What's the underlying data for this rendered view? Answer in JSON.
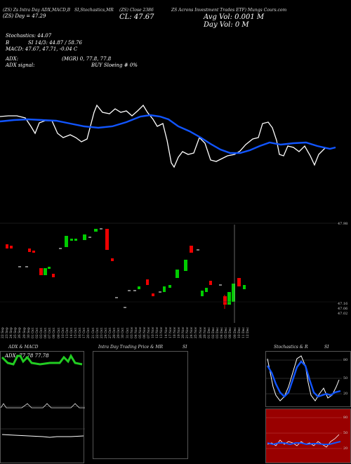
{
  "header": {
    "left1": "(ZS) Zs Intra Day ADX,MACD,B",
    "left2": "(ZS) Day = 47.29",
    "center1": "SI,Stochastics,MR",
    "center2": "(ZS) Close 2386",
    "close": "CL: 47.67",
    "right1": "ZS Acrons Investment Trades ETF) Mungs Cours.com",
    "avg_vol": "Avg Vol: 0.001 M",
    "day_vol": "Day Vol: 0   M"
  },
  "indicators": {
    "stochastics": "Stochastics: 44.07",
    "si": "SI 14/3: 44.87 / 58.76",
    "si_label": "B",
    "macd": "MACD: 47.67, 47.71, -0.04  C",
    "adx": "ADX:",
    "adx_vals": "(MGR) 0, 77.8, 77.8",
    "adx_signal": "ADX  signal:",
    "buy": "BUY Sloeing # 0%"
  },
  "price_labels": {
    "top": "47.98",
    "low1": "47.16",
    "low2": "47.06",
    "low3": "47.02"
  },
  "dates": [
    "22 Sep",
    "23 Sep",
    "24 Sep",
    "25 Sep",
    "26 Sep",
    "29 Sep",
    "30 Sep",
    "01 Oct",
    "02 Oct",
    "03 Oct",
    "06 Oct",
    "07 Oct",
    "08 Oct",
    "09 Oct",
    "10 Oct",
    "13 Oct",
    "14 Oct",
    "15 Oct",
    "16 Oct",
    "17 Oct",
    "20 Oct",
    "21 Oct",
    "22 Oct",
    "23 Oct",
    "24 Oct",
    "27 Oct",
    "28 Oct",
    "29 Oct",
    "30 Oct",
    "31 Oct",
    "03 Nov",
    "04 Nov",
    "05 Nov",
    "06 Nov",
    "07 Nov",
    "10 Nov",
    "12 Nov",
    "13 Nov",
    "14 Nov",
    "17 Nov",
    "18 Nov",
    "19 Nov",
    "20 Nov",
    "21 Nov",
    "24 Nov",
    "25 Nov",
    "26 Nov",
    "28 Nov",
    "01 Dec",
    "02 Dec",
    "03 Dec",
    "04 Dec",
    "05 Dec",
    "08 Dec",
    "09 Dec",
    "10 Dec",
    "11 Dec",
    "12 Dec"
  ],
  "bottom": {
    "adx_title": "ADX  & MACD",
    "adx_vals": "ADX: 77.78  77.78",
    "intra_title": "Intra  Day Trading Price  & MR",
    "intra_si": "SI",
    "stoch_title": "Stochastics & R",
    "stoch_si": "SI",
    "stoch_ticks": [
      "80",
      "50",
      "20"
    ],
    "si_ticks": [
      "80",
      "50",
      "20"
    ]
  },
  "colors": {
    "up": "#00cc00",
    "down": "#ee0000",
    "ma": "#1155ff",
    "band": "#990000"
  }
}
